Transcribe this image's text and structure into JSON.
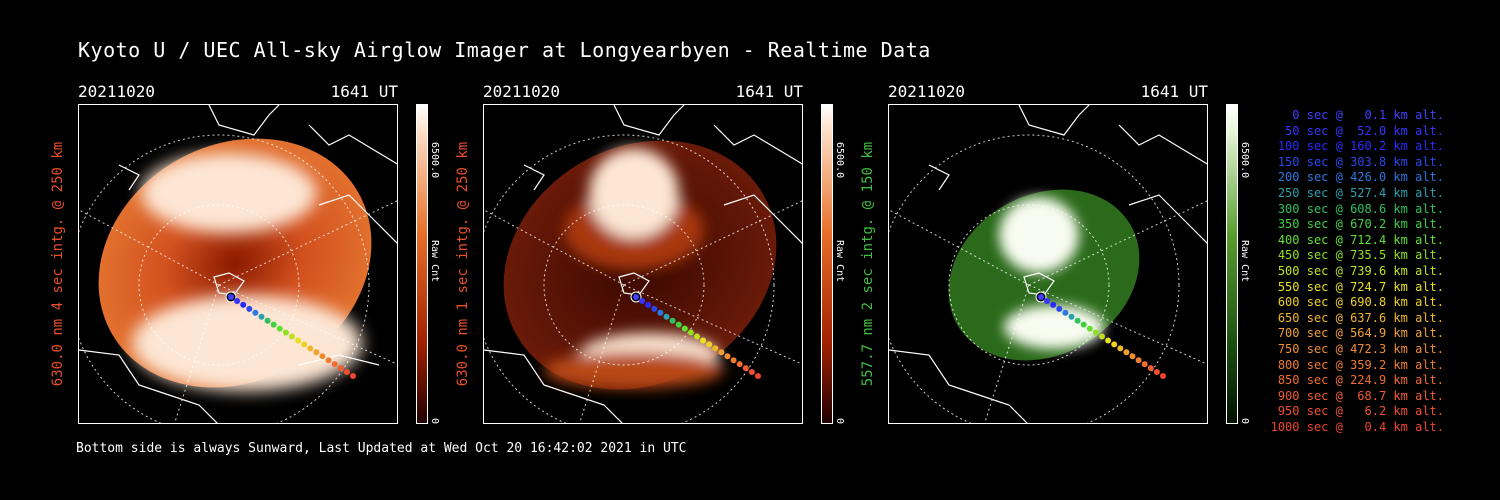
{
  "title": "Kyoto U / UEC All-sky Airglow Imager at Longyearbyen - Realtime Data",
  "footer": "Bottom side is always Sunward, Last Updated at Wed Oct 20 16:42:02 2021 in UTC",
  "panels": [
    {
      "date": "20211020",
      "time": "1641 UT",
      "ylabel": "630.0 nm 4 sec intg. @ 250 km",
      "label_color": "#e8502a",
      "colorbar_max": "6500.0",
      "colorbar_min": "0",
      "colorbar_unit": "Raw Cnt",
      "cmap": "red"
    },
    {
      "date": "20211020",
      "time": "1641 UT",
      "ylabel": "630.0 nm 1 sec intg. @ 250 km",
      "label_color": "#e8502a",
      "colorbar_max": "6500.0",
      "colorbar_min": "0",
      "colorbar_unit": "Raw Cnt",
      "cmap": "red"
    },
    {
      "date": "20211020",
      "time": "1641 UT",
      "ylabel": "557.7 nm 2 sec intg. @ 150 km",
      "label_color": "#3fbf3f",
      "colorbar_max": "6500.0",
      "colorbar_min": "0",
      "colorbar_unit": "Raw Cnt",
      "cmap": "green"
    }
  ],
  "legend": [
    {
      "text": "0 sec @   0.1 km alt.",
      "color": "#4040ff"
    },
    {
      "text": "50 sec @  52.0 km alt.",
      "color": "#3535ff"
    },
    {
      "text": "100 sec @ 160.2 km alt.",
      "color": "#2a2aff"
    },
    {
      "text": "150 sec @ 303.8 km alt.",
      "color": "#2a48f0"
    },
    {
      "text": "200 sec @ 426.0 km alt.",
      "color": "#2a78e0"
    },
    {
      "text": "250 sec @ 527.4 km alt.",
      "color": "#2aa0b0"
    },
    {
      "text": "300 sec @ 608.6 km alt.",
      "color": "#30c060"
    },
    {
      "text": "350 sec @ 670.2 km alt.",
      "color": "#40d040"
    },
    {
      "text": "400 sec @ 712.4 km alt.",
      "color": "#60e030"
    },
    {
      "text": "450 sec @ 735.5 km alt.",
      "color": "#90e020"
    },
    {
      "text": "500 sec @ 739.6 km alt.",
      "color": "#c0e020"
    },
    {
      "text": "550 sec @ 724.7 km alt.",
      "color": "#e8e020"
    },
    {
      "text": "600 sec @ 690.8 km alt.",
      "color": "#f0d020"
    },
    {
      "text": "650 sec @ 637.6 km alt.",
      "color": "#f0b828"
    },
    {
      "text": "700 sec @ 564.9 km alt.",
      "color": "#f0a030"
    },
    {
      "text": "750 sec @ 472.3 km alt.",
      "color": "#f08c30"
    },
    {
      "text": "800 sec @ 359.2 km alt.",
      "color": "#f07c30"
    },
    {
      "text": "850 sec @ 224.9 km alt.",
      "color": "#f06c30"
    },
    {
      "text": "900 sec @  68.7 km alt.",
      "color": "#f05c30"
    },
    {
      "text": "950 sec @   6.2 km alt.",
      "color": "#f05030"
    },
    {
      "text": "1000 sec @   0.4 km alt.",
      "color": "#f04430"
    }
  ]
}
